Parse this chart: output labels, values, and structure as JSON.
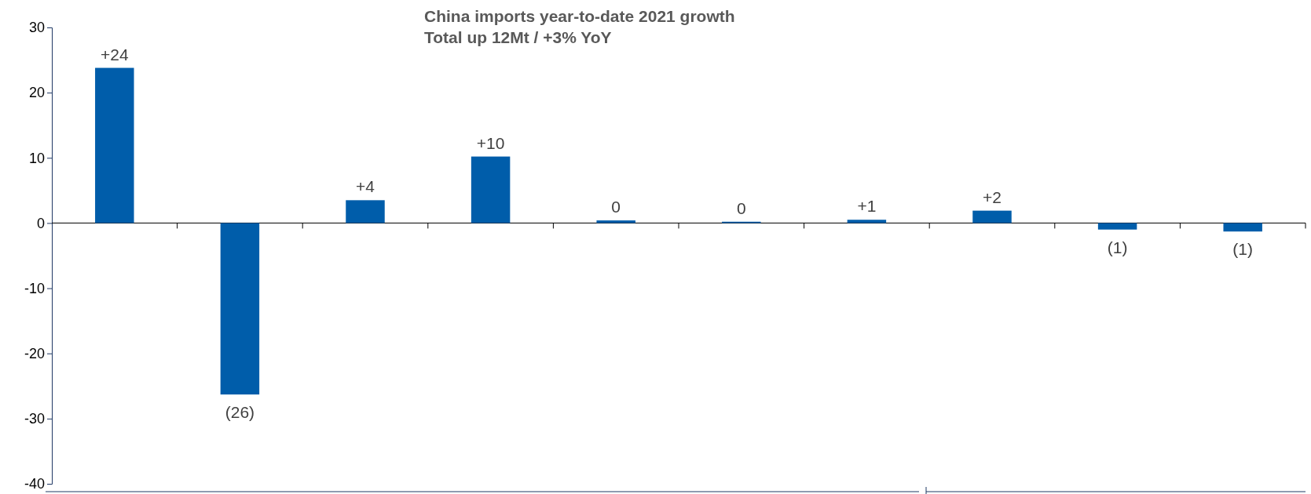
{
  "chart_data": {
    "type": "bar",
    "title": "China imports year-to-date 2021 growth\nTotal up 12Mt / +3% YoY",
    "categories": [
      null,
      null,
      null,
      null,
      null,
      null,
      null,
      null,
      null,
      null
    ],
    "values": [
      23.8,
      -26.3,
      3.5,
      10.2,
      0.4,
      0.2,
      0.5,
      1.9,
      -1.0,
      -1.3
    ],
    "value_labels": [
      "+24",
      "(26)",
      "+4",
      "+10",
      "0",
      "0",
      "+1",
      "+2",
      "(1)",
      "(1)"
    ],
    "color": "#005daa",
    "ylim": [
      -40,
      30
    ],
    "yticks": [
      -40,
      -30,
      -20,
      -10,
      0,
      10,
      20,
      30
    ],
    "tick_labels": "y"
  }
}
